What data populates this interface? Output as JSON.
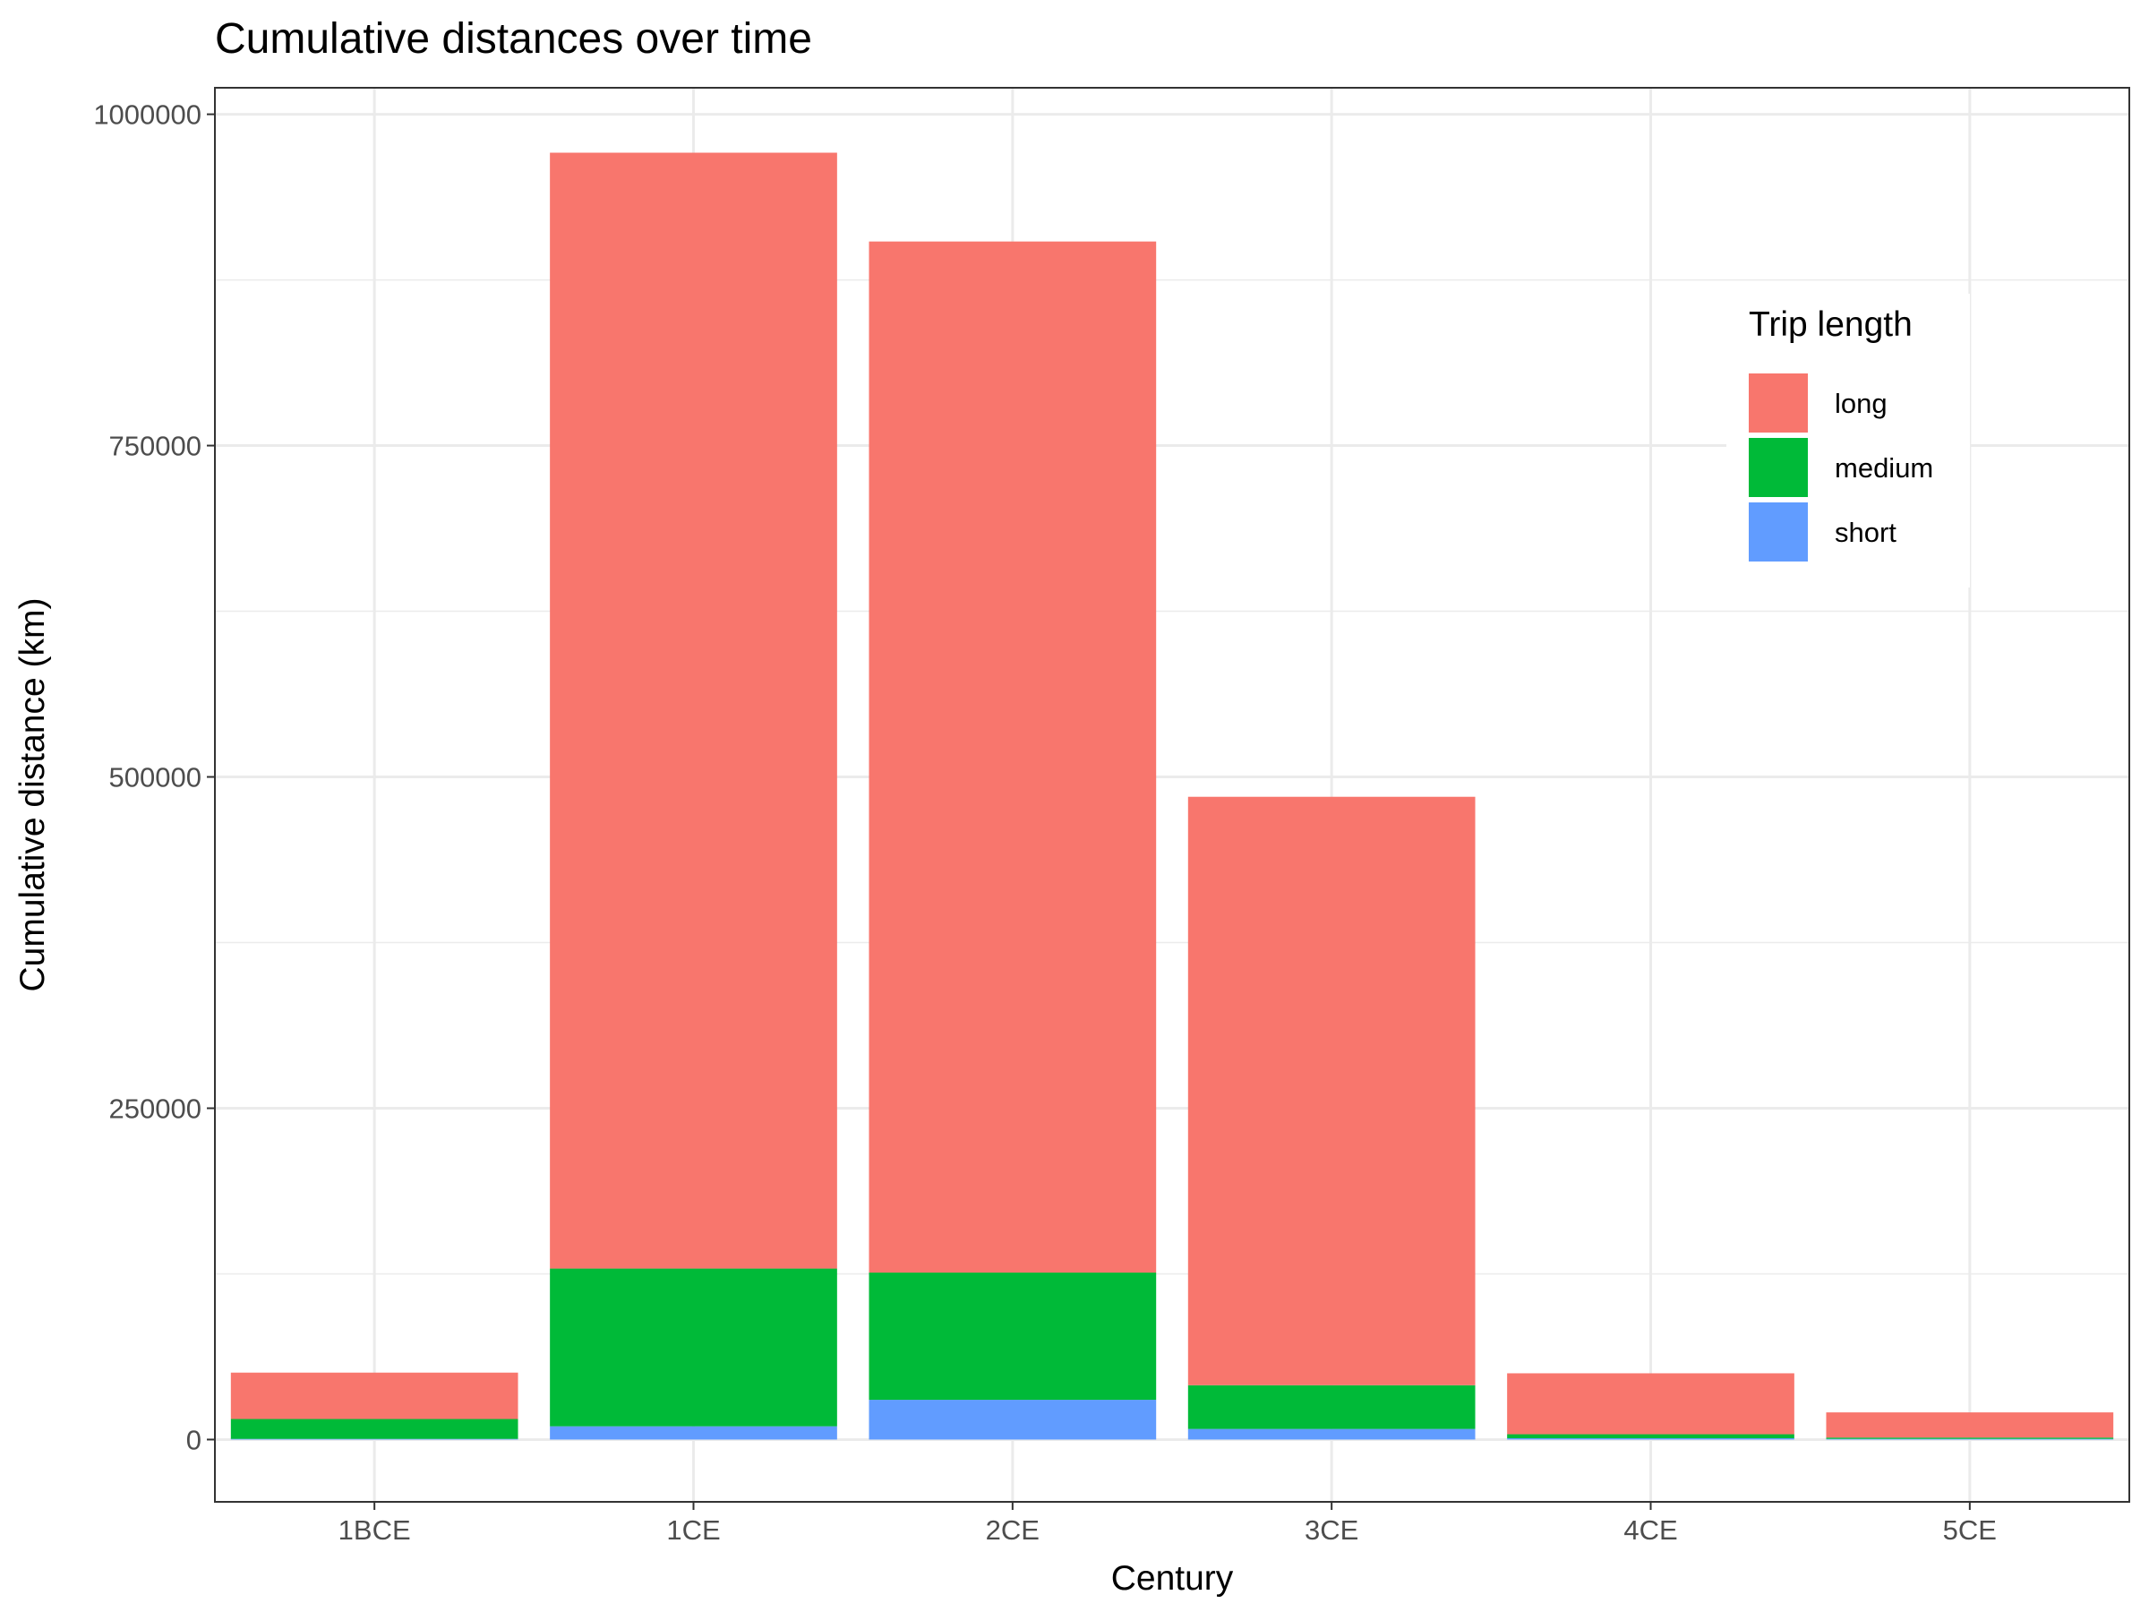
{
  "chart_data": {
    "type": "bar",
    "stacked": true,
    "title": "Cumulative distances over time",
    "xlabel": "Century",
    "ylabel": "Cumulative distance (km)",
    "categories": [
      "1BCE",
      "1CE",
      "2CE",
      "3CE",
      "4CE",
      "5CE"
    ],
    "yticks": [
      0,
      250000,
      500000,
      750000,
      1000000
    ],
    "ytick_labels": [
      "0",
      "250000",
      "500000",
      "750000",
      "1000000"
    ],
    "ylim": [
      -47000,
      1020000
    ],
    "grid": true,
    "legend": {
      "title": "Trip length",
      "placement": "top-right, inside plot"
    },
    "series": [
      {
        "name": "short",
        "color": "#619CFF",
        "values": [
          500,
          10000,
          30000,
          8000,
          1000,
          500
        ]
      },
      {
        "name": "medium",
        "color": "#00BA38",
        "values": [
          15000,
          119000,
          96000,
          33000,
          3000,
          1000
        ]
      },
      {
        "name": "long",
        "color": "#F8766D",
        "values": [
          35000,
          842000,
          778000,
          444000,
          46000,
          19000
        ]
      }
    ],
    "legend_order": [
      "long",
      "medium",
      "short"
    ]
  }
}
